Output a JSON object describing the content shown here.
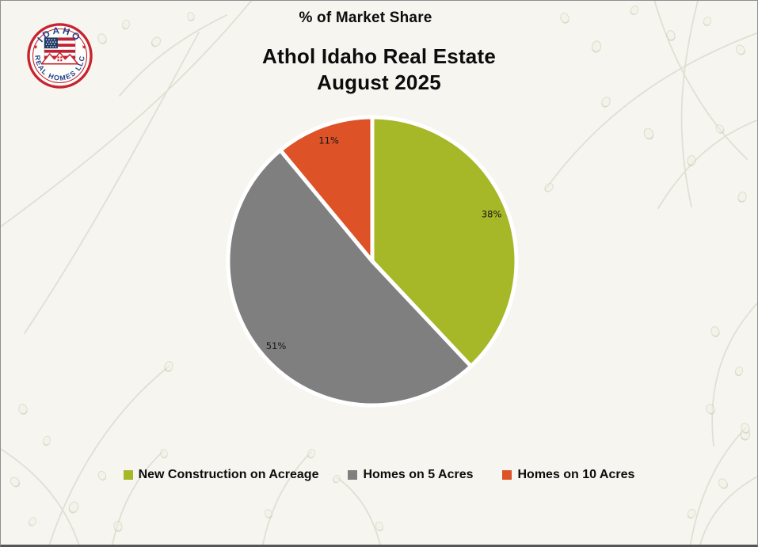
{
  "page": {
    "background_color": "#f6f5f0",
    "border_color": "#8f8f8f"
  },
  "logo": {
    "top_text": "IDAHO",
    "bottom_text": "REAL HOMES LLC",
    "ring_color": "#c6242e",
    "text_color": "#23418c",
    "flag_navy": "#203a66",
    "flag_red": "#bf2333",
    "star_glyph": "★"
  },
  "header": {
    "kicker": "% of Market Share",
    "title_line1": "Athol Idaho Real Estate",
    "title_line2": "August 2025"
  },
  "chart_data": {
    "type": "pie",
    "title": "% of Market Share",
    "subtitle": "Athol Idaho Real Estate August 2025",
    "start_angle_deg": 0,
    "direction": "clockwise",
    "label_radius_ratio": 0.89,
    "legend_position": "bottom",
    "slices": [
      {
        "label": "New Construction on Acreage",
        "value": 38,
        "display": "38%",
        "color": "#a6b727"
      },
      {
        "label": "Homes on 5 Acres",
        "value": 51,
        "display": "51%",
        "color": "#7f7f7f"
      },
      {
        "label": "Homes on 10 Acres",
        "value": 11,
        "display": "11%",
        "color": "#dd5226"
      }
    ]
  }
}
